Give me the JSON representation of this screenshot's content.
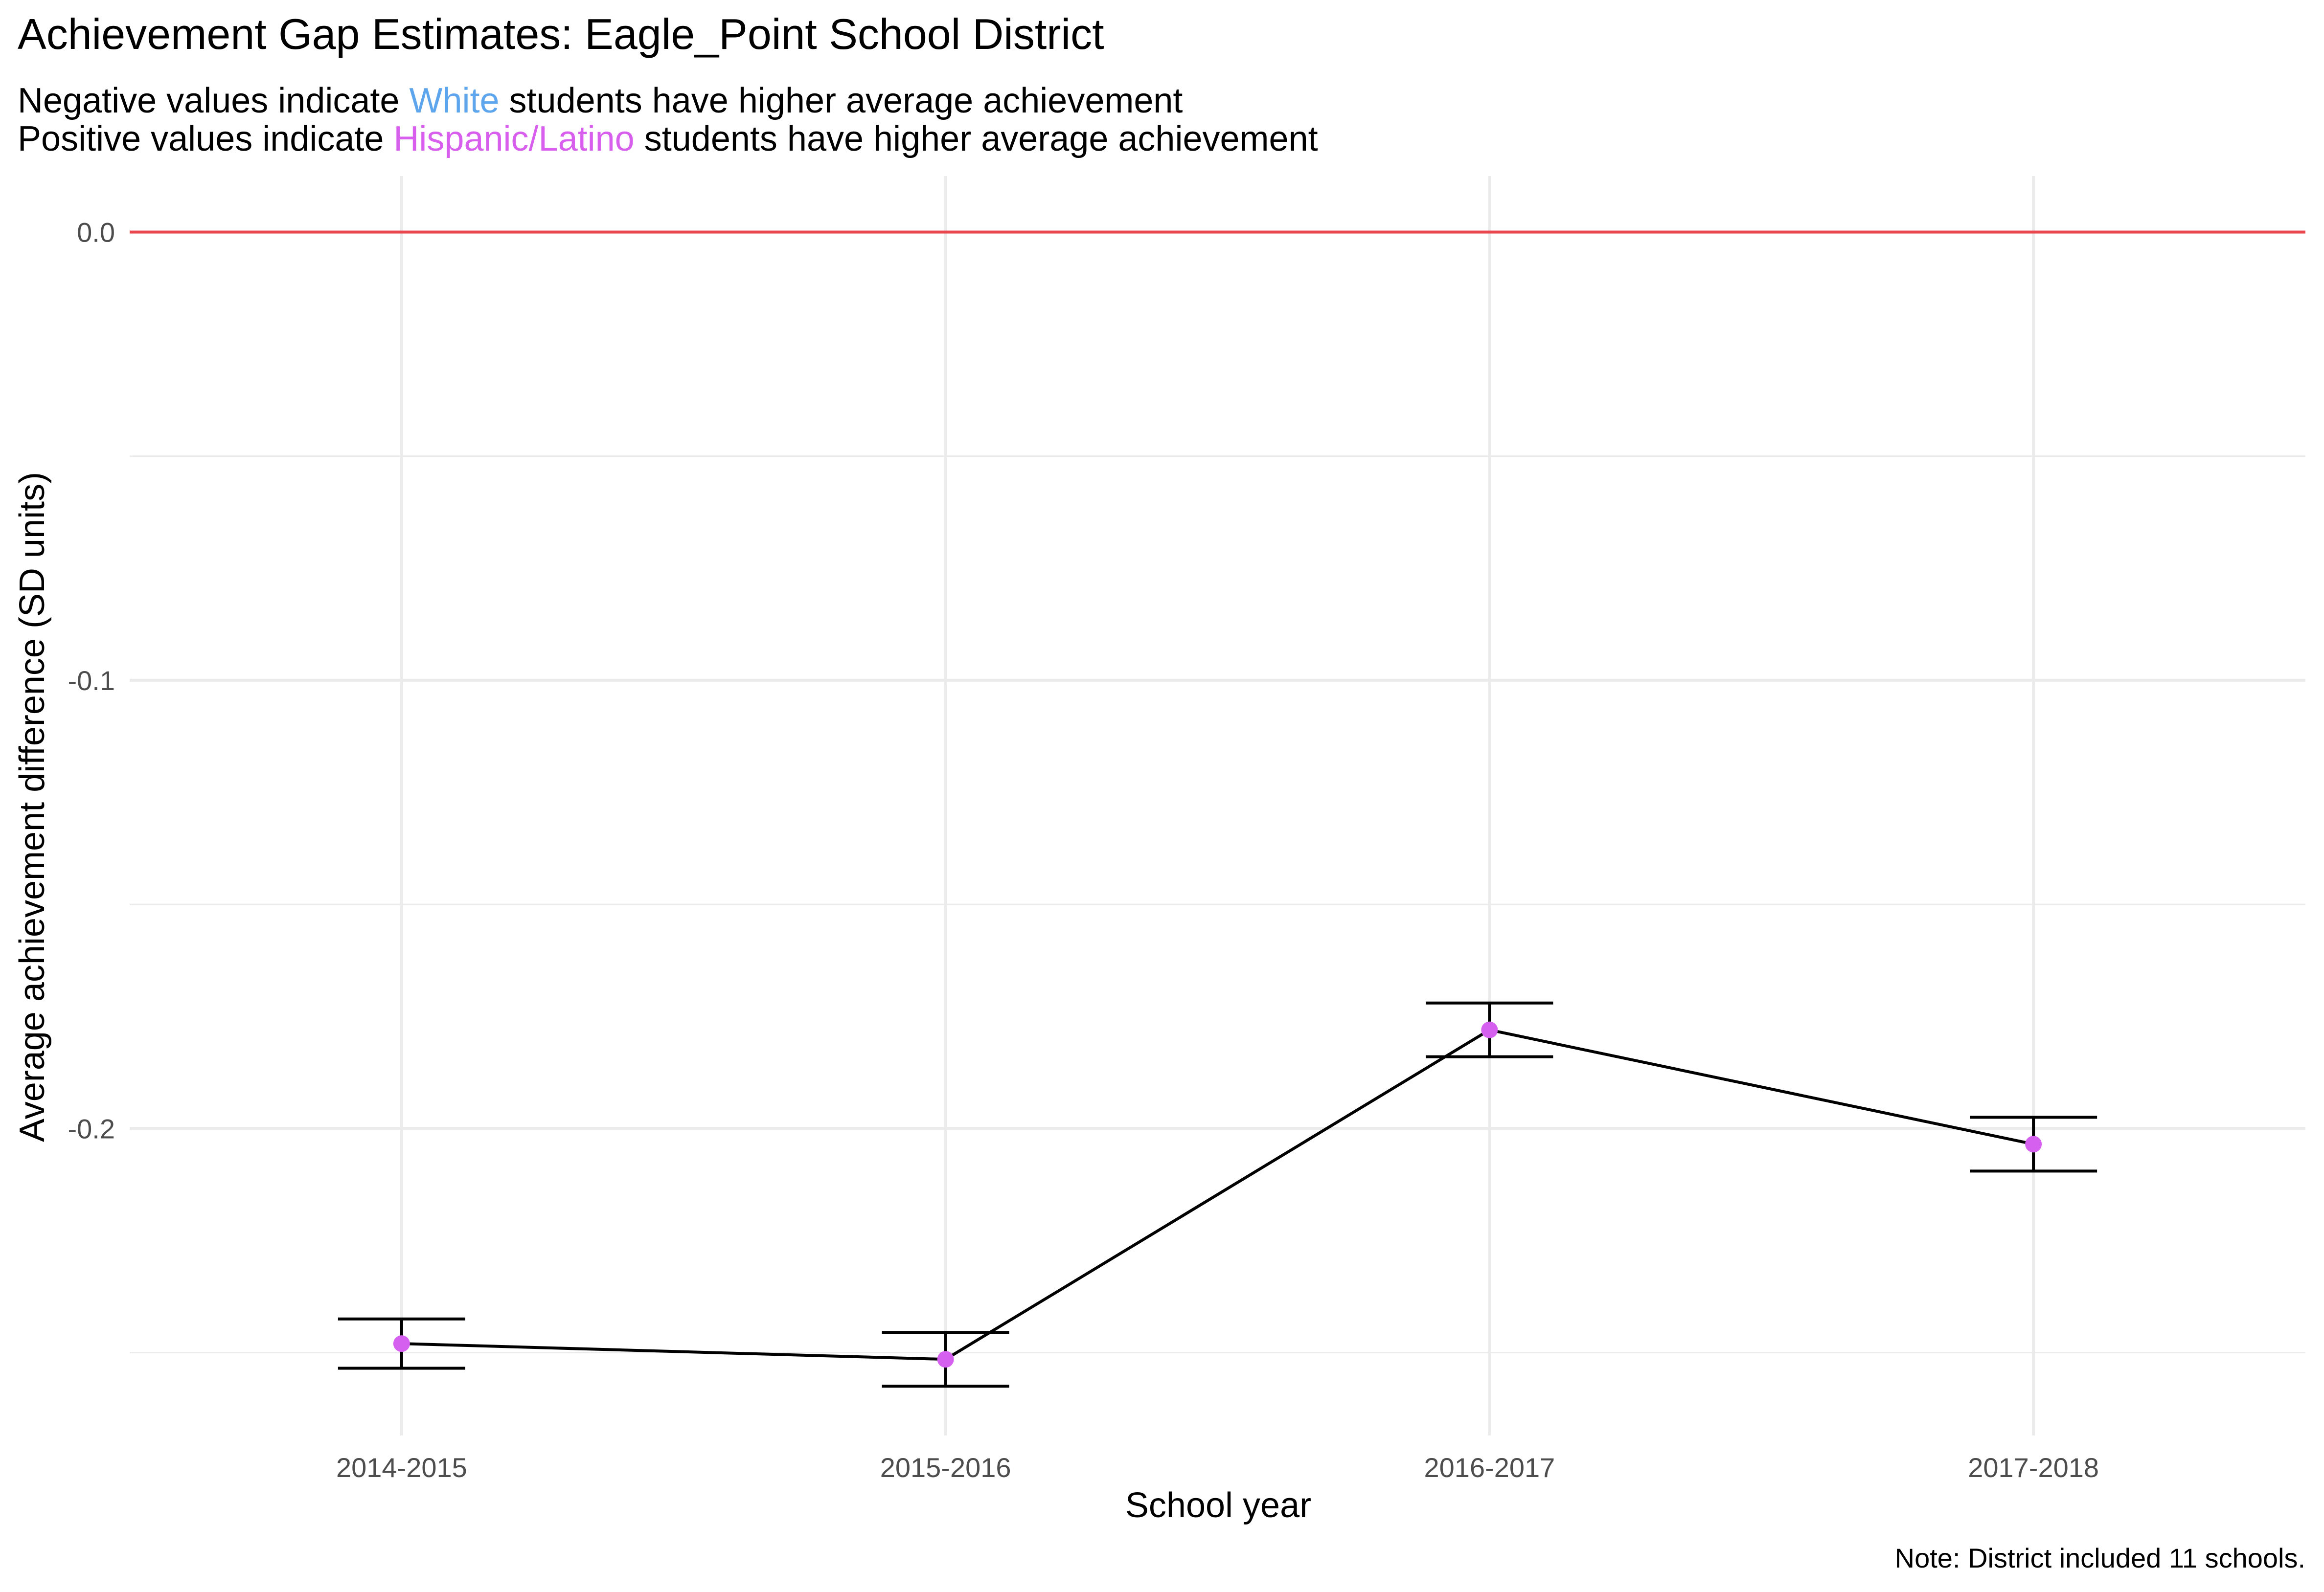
{
  "chart_data": {
    "type": "line",
    "title": "Achievement Gap Estimates: Eagle_Point School District",
    "subtitle": {
      "line1": {
        "before": "Negative values indicate ",
        "highlight": "White",
        "after": " students have higher average achievement"
      },
      "line2": {
        "before": "Positive values indicate ",
        "highlight": "Hispanic/Latino",
        "after": " students have higher average achievement"
      }
    },
    "xlabel": "School year",
    "ylabel": "Average achievement difference (SD units)",
    "caption": "Note: District included 11 schools.",
    "categories": [
      "2014-2015",
      "2015-2016",
      "2016-2017",
      "2017-2018"
    ],
    "values": [
      -0.248,
      -0.2515,
      -0.178,
      -0.2035
    ],
    "ci_lower": [
      -0.2535,
      -0.2575,
      -0.184,
      -0.2095
    ],
    "ci_upper": [
      -0.2425,
      -0.2455,
      -0.172,
      -0.1975
    ],
    "reference_line": 0.0,
    "yticks": [
      0.0,
      -0.1,
      -0.2
    ],
    "ytick_labels": [
      "0.0",
      "-0.1",
      "-0.2"
    ],
    "ylim": [
      -0.2685,
      0.0125
    ],
    "grid": true,
    "legend": "none",
    "colors": {
      "white_group": "#5DA5EC",
      "hispanic_group": "#D85EEE",
      "point": "#D55FEE",
      "reference_line": "#E8484F",
      "line": "#000000",
      "grid": "#EBEBEB",
      "axis_text": "#4D4D4D",
      "text": "#000000"
    }
  }
}
